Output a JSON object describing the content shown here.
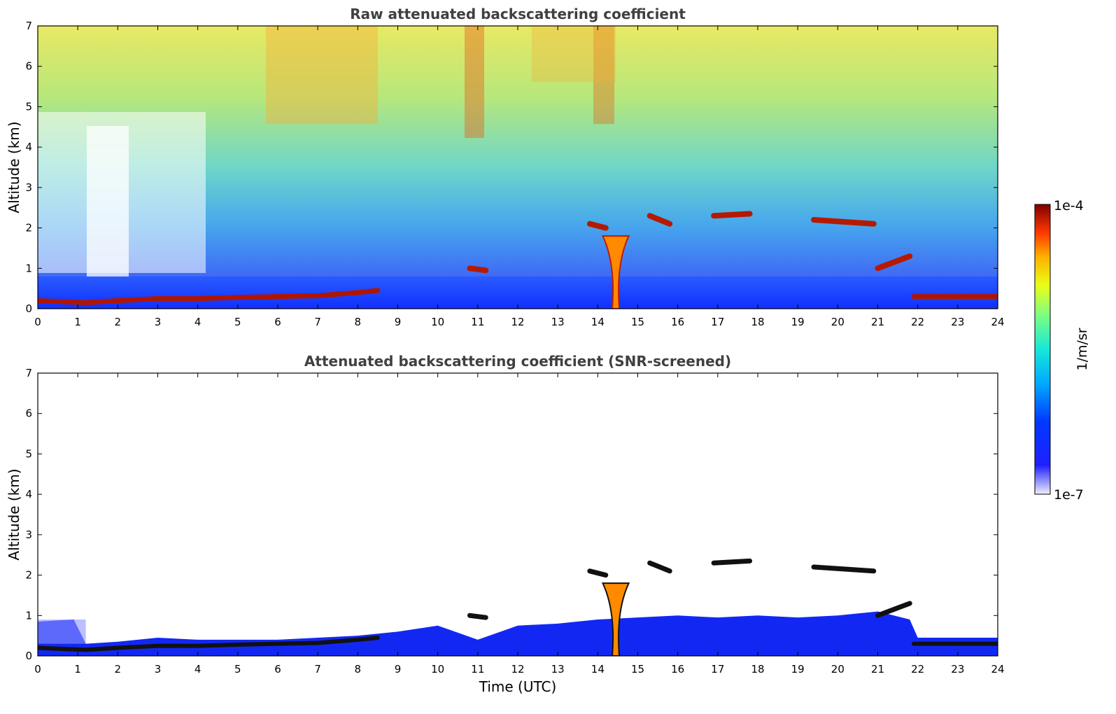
{
  "chart_data": [
    {
      "type": "heatmap",
      "title": "Raw attenuated backscattering coefficient",
      "xlabel": "",
      "ylabel": "Altitude (km)",
      "xlim": [
        0,
        24
      ],
      "ylim": [
        0,
        7
      ],
      "xticks": [
        "0",
        "1",
        "2",
        "3",
        "4",
        "5",
        "6",
        "7",
        "8",
        "9",
        "10",
        "11",
        "12",
        "13",
        "14",
        "15",
        "16",
        "17",
        "18",
        "19",
        "20",
        "21",
        "22",
        "23",
        "24"
      ],
      "yticks": [
        "0",
        "1",
        "2",
        "3",
        "4",
        "5",
        "6",
        "7"
      ],
      "features": [
        {
          "kind": "aerosol_layer_top",
          "time": [
            0,
            1.2,
            2,
            3,
            4,
            5,
            6,
            7,
            8,
            8.5
          ],
          "altitude_km": [
            0.2,
            0.15,
            0.2,
            0.25,
            0.25,
            0.28,
            0.3,
            0.32,
            0.4,
            0.45
          ]
        },
        {
          "kind": "aerosol_layer_top",
          "time": [
            21.9,
            23,
            24
          ],
          "altitude_km": [
            0.3,
            0.3,
            0.3
          ]
        },
        {
          "kind": "cloud_layer",
          "time": [
            13.8,
            14.2
          ],
          "altitude_km": [
            2.1,
            2.0
          ]
        },
        {
          "kind": "cloud_column",
          "time": [
            14.3,
            14.6
          ],
          "altitude_km": [
            0,
            1.8
          ]
        },
        {
          "kind": "cloud_layer",
          "time": [
            15.3,
            15.8
          ],
          "altitude_km": [
            2.3,
            2.1
          ]
        },
        {
          "kind": "cloud_layer",
          "time": [
            16.9,
            17.8
          ],
          "altitude_km": [
            2.3,
            2.35
          ]
        },
        {
          "kind": "cloud_layer",
          "time": [
            19.4,
            20.9
          ],
          "altitude_km": [
            2.2,
            2.1
          ]
        },
        {
          "kind": "cloud_layer",
          "time": [
            10.8,
            11.2
          ],
          "altitude_km": [
            1.0,
            0.95
          ]
        },
        {
          "kind": "cloud_layer",
          "time": [
            21.0,
            21.8
          ],
          "altitude_km": [
            1.0,
            1.3
          ]
        }
      ]
    },
    {
      "type": "heatmap",
      "title": "Attenuated backscattering coefficient (SNR-screened)",
      "xlabel": "Time (UTC)",
      "ylabel": "Altitude (km)",
      "xlim": [
        0,
        24
      ],
      "ylim": [
        0,
        7
      ],
      "xticks": [
        "0",
        "1",
        "2",
        "3",
        "4",
        "5",
        "6",
        "7",
        "8",
        "9",
        "10",
        "11",
        "12",
        "13",
        "14",
        "15",
        "16",
        "17",
        "18",
        "19",
        "20",
        "21",
        "22",
        "23",
        "24"
      ],
      "yticks": [
        "0",
        "1",
        "2",
        "3",
        "4",
        "5",
        "6",
        "7"
      ],
      "boundary_layer_top": {
        "time": [
          0,
          0.9,
          1.2,
          2,
          3,
          4,
          6,
          8,
          9,
          10,
          11,
          12,
          13,
          14,
          16,
          17,
          18,
          19,
          20,
          21,
          21.8,
          22,
          23,
          24
        ],
        "altitude_km": [
          0.85,
          0.9,
          0.3,
          0.35,
          0.45,
          0.4,
          0.4,
          0.5,
          0.6,
          0.75,
          0.4,
          0.75,
          0.8,
          0.9,
          1.0,
          0.95,
          1.0,
          0.95,
          1.0,
          1.1,
          0.9,
          0.45,
          0.45,
          0.45
        ]
      }
    }
  ],
  "colorbar": {
    "label": "1/m/sr",
    "min_label": "1e-7",
    "max_label": "1e-4",
    "min": 1e-07,
    "max": 0.0001,
    "scale": "log",
    "colormap": "jet"
  }
}
